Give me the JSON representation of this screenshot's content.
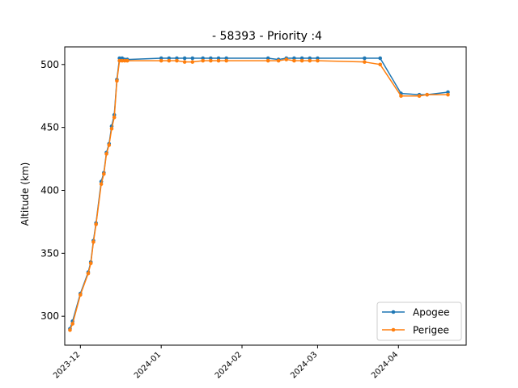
{
  "chart_data": {
    "type": "line",
    "title": "- 58393 - Priority :4",
    "xlabel": "",
    "ylabel": "Altitude (km)",
    "x_is_date": true,
    "xlim": [
      "2023-11-25",
      "2024-04-27"
    ],
    "ylim": [
      277,
      514
    ],
    "grid": false,
    "legend_position": "lower-right",
    "xticks": [
      {
        "date": "2023-12-01",
        "label": "2023-12"
      },
      {
        "date": "2024-01-01",
        "label": "2024-01"
      },
      {
        "date": "2024-02-01",
        "label": "2024-02"
      },
      {
        "date": "2024-03-01",
        "label": "2024-03"
      },
      {
        "date": "2024-04-01",
        "label": "2024-04"
      }
    ],
    "yticks": [
      300,
      350,
      400,
      450,
      500
    ],
    "series": [
      {
        "name": "Apogee",
        "color": "#1f77b4",
        "points": [
          [
            "2023-11-27",
            290
          ],
          [
            "2023-11-28",
            296
          ],
          [
            "2023-12-01",
            318
          ],
          [
            "2023-12-04",
            335
          ],
          [
            "2023-12-05",
            343
          ],
          [
            "2023-12-06",
            360
          ],
          [
            "2023-12-07",
            374
          ],
          [
            "2023-12-09",
            407
          ],
          [
            "2023-12-10",
            414
          ],
          [
            "2023-12-11",
            430
          ],
          [
            "2023-12-12",
            437
          ],
          [
            "2023-12-13",
            451
          ],
          [
            "2023-12-14",
            460
          ],
          [
            "2023-12-15",
            488
          ],
          [
            "2023-12-16",
            505
          ],
          [
            "2023-12-17",
            505
          ],
          [
            "2023-12-18",
            504
          ],
          [
            "2023-12-19",
            504
          ],
          [
            "2024-01-01",
            505
          ],
          [
            "2024-01-04",
            505
          ],
          [
            "2024-01-07",
            505
          ],
          [
            "2024-01-10",
            505
          ],
          [
            "2024-01-13",
            505
          ],
          [
            "2024-01-17",
            505
          ],
          [
            "2024-01-20",
            505
          ],
          [
            "2024-01-23",
            505
          ],
          [
            "2024-01-26",
            505
          ],
          [
            "2024-02-11",
            505
          ],
          [
            "2024-02-15",
            504
          ],
          [
            "2024-02-18",
            505
          ],
          [
            "2024-02-21",
            505
          ],
          [
            "2024-02-24",
            505
          ],
          [
            "2024-02-27",
            505
          ],
          [
            "2024-03-01",
            505
          ],
          [
            "2024-03-19",
            505
          ],
          [
            "2024-03-25",
            505
          ],
          [
            "2024-04-02",
            477
          ],
          [
            "2024-04-09",
            476
          ],
          [
            "2024-04-12",
            476
          ],
          [
            "2024-04-20",
            478
          ]
        ]
      },
      {
        "name": "Perigee",
        "color": "#ff7f0e",
        "points": [
          [
            "2023-11-27",
            289
          ],
          [
            "2023-11-28",
            294
          ],
          [
            "2023-12-01",
            317
          ],
          [
            "2023-12-04",
            334
          ],
          [
            "2023-12-05",
            342
          ],
          [
            "2023-12-06",
            359
          ],
          [
            "2023-12-07",
            373
          ],
          [
            "2023-12-09",
            405
          ],
          [
            "2023-12-10",
            413
          ],
          [
            "2023-12-11",
            429
          ],
          [
            "2023-12-12",
            436
          ],
          [
            "2023-12-13",
            449
          ],
          [
            "2023-12-14",
            458
          ],
          [
            "2023-12-15",
            487
          ],
          [
            "2023-12-16",
            503
          ],
          [
            "2023-12-17",
            503
          ],
          [
            "2023-12-18",
            503
          ],
          [
            "2023-12-19",
            503
          ],
          [
            "2024-01-01",
            503
          ],
          [
            "2024-01-04",
            503
          ],
          [
            "2024-01-07",
            503
          ],
          [
            "2024-01-10",
            502
          ],
          [
            "2024-01-13",
            502
          ],
          [
            "2024-01-17",
            503
          ],
          [
            "2024-01-20",
            503
          ],
          [
            "2024-01-23",
            503
          ],
          [
            "2024-01-26",
            503
          ],
          [
            "2024-02-11",
            503
          ],
          [
            "2024-02-15",
            503
          ],
          [
            "2024-02-18",
            504
          ],
          [
            "2024-02-21",
            503
          ],
          [
            "2024-02-24",
            503
          ],
          [
            "2024-02-27",
            503
          ],
          [
            "2024-03-01",
            503
          ],
          [
            "2024-03-19",
            502
          ],
          [
            "2024-03-25",
            500
          ],
          [
            "2024-04-02",
            475
          ],
          [
            "2024-04-09",
            475
          ],
          [
            "2024-04-12",
            476
          ],
          [
            "2024-04-20",
            476
          ]
        ]
      }
    ]
  }
}
